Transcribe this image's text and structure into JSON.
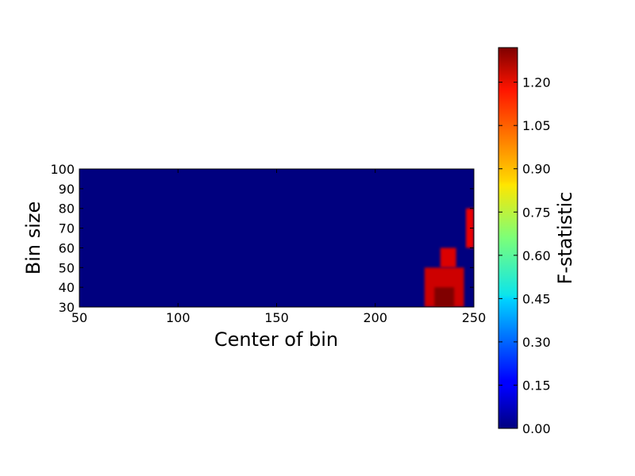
{
  "chart_data": {
    "type": "heatmap",
    "title": "",
    "xlabel": "Center of bin",
    "ylabel": "Bin size",
    "xlim": [
      50,
      250
    ],
    "ylim": [
      30,
      100
    ],
    "x_ticks": [
      50,
      100,
      150,
      200,
      250
    ],
    "y_ticks": [
      30,
      40,
      50,
      60,
      70,
      80,
      90,
      100
    ],
    "background_value": 0.0,
    "regions": [
      {
        "x_range": [
          225,
          245
        ],
        "y_range": [
          30,
          50
        ],
        "value": 1.22
      },
      {
        "x_range": [
          233,
          241
        ],
        "y_range": [
          50,
          60
        ],
        "value": 1.2
      },
      {
        "x_range": [
          230,
          240
        ],
        "y_range": [
          30,
          40
        ],
        "value": 1.32
      },
      {
        "x_range": [
          246,
          250
        ],
        "y_range": [
          60,
          80
        ],
        "value": 1.18
      }
    ],
    "colorbar": {
      "label": "F-statistic",
      "colormap": "jet",
      "range": [
        0.0,
        1.32
      ],
      "ticks": [
        "0.00",
        "0.15",
        "0.30",
        "0.45",
        "0.60",
        "0.75",
        "0.90",
        "1.05",
        "1.20"
      ]
    }
  }
}
